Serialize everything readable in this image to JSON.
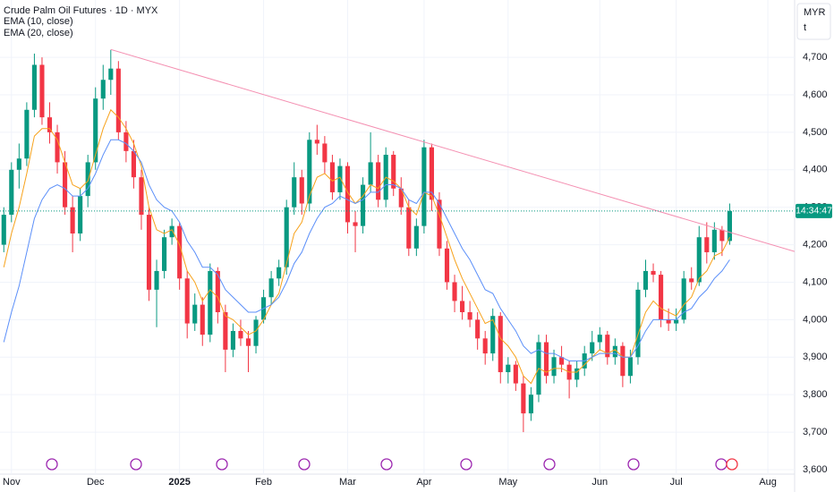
{
  "chart_data": {
    "type": "candlestick",
    "title": "Crude Palm Oil Futures · 1D · MYX",
    "currency": "MYR",
    "unit_label": "t",
    "countdown": "14:34:47",
    "up_color": "#089981",
    "down_color": "#f23645",
    "grid": true,
    "xlim": [
      -0.5,
      103.5
    ],
    "xticks": [
      {
        "value": 1,
        "label": "Nov"
      },
      {
        "value": 12,
        "label": "Dec"
      },
      {
        "value": 23,
        "label": "2025"
      },
      {
        "value": 34,
        "label": "Feb"
      },
      {
        "value": 45,
        "label": "Mar"
      },
      {
        "value": 55,
        "label": "Apr"
      },
      {
        "value": 66,
        "label": "May"
      },
      {
        "value": 78,
        "label": "Jun"
      },
      {
        "value": 88,
        "label": "Jul"
      },
      {
        "value": 100,
        "label": "Aug"
      }
    ],
    "ylim": [
      3588,
      4853
    ],
    "yticks": [
      {
        "value": 3600,
        "label": "3,600"
      },
      {
        "value": 3700,
        "label": "3,700"
      },
      {
        "value": 3800,
        "label": "3,800"
      },
      {
        "value": 3900,
        "label": "3,900"
      },
      {
        "value": 4000,
        "label": "4,000"
      },
      {
        "value": 4100,
        "label": "4,100"
      },
      {
        "value": 4200,
        "label": "4,200"
      },
      {
        "value": 4300,
        "label": "4,300"
      },
      {
        "value": 4400,
        "label": "4,400"
      },
      {
        "value": 4500,
        "label": "4,500"
      },
      {
        "value": 4600,
        "label": "4,600"
      },
      {
        "value": 4700,
        "label": "4,700"
      }
    ],
    "ohlc": [
      [
        4200,
        4300,
        4180,
        4280
      ],
      [
        4280,
        4420,
        4260,
        4400
      ],
      [
        4400,
        4470,
        4350,
        4430
      ],
      [
        4430,
        4580,
        4410,
        4560
      ],
      [
        4560,
        4710,
        4540,
        4680
      ],
      [
        4680,
        4700,
        4520,
        4540
      ],
      [
        4540,
        4580,
        4470,
        4500
      ],
      [
        4500,
        4520,
        4390,
        4420
      ],
      [
        4420,
        4450,
        4280,
        4300
      ],
      [
        4300,
        4330,
        4180,
        4230
      ],
      [
        4230,
        4350,
        4210,
        4330
      ],
      [
        4330,
        4440,
        4300,
        4420
      ],
      [
        4420,
        4620,
        4400,
        4590
      ],
      [
        4590,
        4680,
        4560,
        4640
      ],
      [
        4640,
        4720,
        4600,
        4670
      ],
      [
        4670,
        4690,
        4480,
        4500
      ],
      [
        4500,
        4530,
        4420,
        4450
      ],
      [
        4450,
        4480,
        4350,
        4380
      ],
      [
        4380,
        4400,
        4240,
        4280
      ],
      [
        4280,
        4300,
        4050,
        4080
      ],
      [
        4080,
        4160,
        3980,
        4130
      ],
      [
        4130,
        4240,
        4110,
        4220
      ],
      [
        4220,
        4270,
        4200,
        4250
      ],
      [
        4250,
        4260,
        4080,
        4110
      ],
      [
        4110,
        4130,
        3950,
        3990
      ],
      [
        3990,
        4070,
        3970,
        4040
      ],
      [
        4040,
        4060,
        3930,
        3960
      ],
      [
        3960,
        4150,
        3940,
        4130
      ],
      [
        4130,
        4140,
        3990,
        4020
      ],
      [
        4020,
        4040,
        3860,
        3920
      ],
      [
        3920,
        3990,
        3900,
        3970
      ],
      [
        3970,
        4000,
        3930,
        3950
      ],
      [
        3950,
        3970,
        3860,
        3930
      ],
      [
        3930,
        4010,
        3910,
        4000
      ],
      [
        4000,
        4080,
        3990,
        4060
      ],
      [
        4060,
        4130,
        4040,
        4110
      ],
      [
        4110,
        4160,
        4090,
        4140
      ],
      [
        4140,
        4320,
        4120,
        4300
      ],
      [
        4300,
        4420,
        4280,
        4380
      ],
      [
        4380,
        4400,
        4280,
        4310
      ],
      [
        4310,
        4500,
        4290,
        4480
      ],
      [
        4480,
        4520,
        4440,
        4470
      ],
      [
        4470,
        4490,
        4390,
        4420
      ],
      [
        4420,
        4440,
        4320,
        4340
      ],
      [
        4340,
        4430,
        4320,
        4410
      ],
      [
        4410,
        4420,
        4230,
        4260
      ],
      [
        4260,
        4290,
        4180,
        4250
      ],
      [
        4250,
        4380,
        4230,
        4360
      ],
      [
        4360,
        4500,
        4340,
        4420
      ],
      [
        4420,
        4440,
        4300,
        4320
      ],
      [
        4320,
        4460,
        4300,
        4440
      ],
      [
        4440,
        4450,
        4330,
        4350
      ],
      [
        4350,
        4380,
        4280,
        4300
      ],
      [
        4300,
        4320,
        4170,
        4190
      ],
      [
        4190,
        4270,
        4170,
        4250
      ],
      [
        4250,
        4480,
        4230,
        4460
      ],
      [
        4460,
        4470,
        4290,
        4320
      ],
      [
        4320,
        4340,
        4170,
        4190
      ],
      [
        4190,
        4210,
        4080,
        4100
      ],
      [
        4100,
        4120,
        4020,
        4050
      ],
      [
        4050,
        4090,
        4000,
        4020
      ],
      [
        4020,
        4050,
        3980,
        4000
      ],
      [
        4000,
        4020,
        3920,
        3950
      ],
      [
        3950,
        3970,
        3880,
        3910
      ],
      [
        3910,
        4030,
        3890,
        4010
      ],
      [
        4010,
        4020,
        3830,
        3860
      ],
      [
        3860,
        3900,
        3830,
        3880
      ],
      [
        3880,
        3890,
        3810,
        3830
      ],
      [
        3830,
        3850,
        3700,
        3750
      ],
      [
        3750,
        3820,
        3730,
        3800
      ],
      [
        3800,
        3960,
        3780,
        3940
      ],
      [
        3940,
        3960,
        3830,
        3850
      ],
      [
        3850,
        3920,
        3830,
        3900
      ],
      [
        3900,
        3930,
        3860,
        3880
      ],
      [
        3880,
        3890,
        3790,
        3840
      ],
      [
        3840,
        3890,
        3820,
        3870
      ],
      [
        3870,
        3930,
        3850,
        3910
      ],
      [
        3910,
        3970,
        3890,
        3940
      ],
      [
        3940,
        3980,
        3920,
        3960
      ],
      [
        3960,
        3970,
        3880,
        3900
      ],
      [
        3900,
        3950,
        3880,
        3930
      ],
      [
        3930,
        3940,
        3820,
        3850
      ],
      [
        3850,
        3920,
        3830,
        3900
      ],
      [
        3900,
        4100,
        3880,
        4080
      ],
      [
        4080,
        4160,
        4060,
        4130
      ],
      [
        4130,
        4150,
        4100,
        4120
      ],
      [
        4120,
        4130,
        3980,
        4000
      ],
      [
        4000,
        4030,
        3970,
        3990
      ],
      [
        3990,
        4030,
        3970,
        4000
      ],
      [
        4000,
        4130,
        3990,
        4110
      ],
      [
        4110,
        4140,
        4080,
        4100
      ],
      [
        4100,
        4250,
        4090,
        4220
      ],
      [
        4220,
        4260,
        4150,
        4180
      ],
      [
        4180,
        4260,
        4160,
        4240
      ],
      [
        4240,
        4250,
        4170,
        4210
      ],
      [
        4210,
        4310,
        4200,
        4290
      ]
    ],
    "series": [
      {
        "name": "EMA (10, close)",
        "color": "#f7a21b",
        "values": [
          4140,
          4230,
          4300,
          4390,
          4490,
          4510,
          4510,
          4480,
          4420,
          4360,
          4350,
          4370,
          4440,
          4510,
          4560,
          4540,
          4510,
          4470,
          4410,
          4300,
          4240,
          4230,
          4240,
          4200,
          4130,
          4100,
          4050,
          4080,
          4060,
          4010,
          4000,
          3980,
          3960,
          3970,
          4000,
          4040,
          4070,
          4150,
          4230,
          4260,
          4330,
          4380,
          4390,
          4370,
          4380,
          4340,
          4310,
          4330,
          4360,
          4350,
          4380,
          4370,
          4350,
          4300,
          4280,
          4340,
          4330,
          4280,
          4220,
          4160,
          4110,
          4070,
          4030,
          3990,
          4000,
          3950,
          3930,
          3900,
          3850,
          3830,
          3870,
          3860,
          3870,
          3870,
          3860,
          3860,
          3880,
          3900,
          3920,
          3910,
          3920,
          3900,
          3900,
          3960,
          4020,
          4050,
          4030,
          4020,
          4010,
          4040,
          4060,
          4110,
          4130,
          4170,
          4180,
          4220
        ]
      },
      {
        "name": "EMA (20, close)",
        "color": "#5b8ff9",
        "values": [
          3940,
          4020,
          4090,
          4180,
          4270,
          4320,
          4350,
          4360,
          4350,
          4330,
          4330,
          4350,
          4390,
          4440,
          4480,
          4480,
          4470,
          4450,
          4420,
          4360,
          4320,
          4300,
          4290,
          4260,
          4210,
          4180,
          4140,
          4140,
          4120,
          4080,
          4060,
          4040,
          4020,
          4020,
          4030,
          4040,
          4060,
          4100,
          4150,
          4180,
          4230,
          4270,
          4300,
          4310,
          4330,
          4320,
          4310,
          4320,
          4340,
          4340,
          4360,
          4360,
          4350,
          4320,
          4310,
          4340,
          4340,
          4310,
          4270,
          4230,
          4190,
          4160,
          4120,
          4080,
          4070,
          4030,
          4000,
          3970,
          3930,
          3910,
          3920,
          3910,
          3910,
          3900,
          3890,
          3890,
          3890,
          3900,
          3910,
          3910,
          3910,
          3900,
          3900,
          3930,
          3970,
          4000,
          4000,
          4000,
          4000,
          4020,
          4030,
          4060,
          4080,
          4110,
          4130,
          4160
        ]
      }
    ],
    "trendline": {
      "color": "#f48fb1",
      "x": [
        14,
        103.5
      ],
      "y": [
        4721,
        4182
      ]
    }
  }
}
